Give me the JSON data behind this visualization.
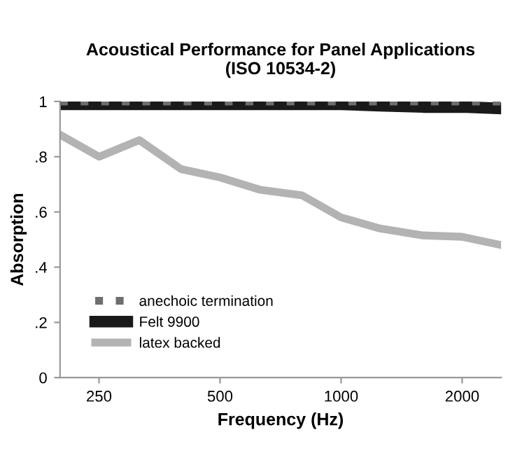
{
  "chart_data": {
    "type": "line",
    "title": "Acoustical Performance for Panel Applications\n(ISO 10534-2)",
    "xlabel": "Frequency (Hz)",
    "ylabel": "Absorption",
    "log": "x",
    "x": [
      200,
      250,
      315,
      400,
      500,
      630,
      800,
      1000,
      1250,
      1600,
      2000,
      2500
    ],
    "xlim": [
      200,
      2500
    ],
    "xticks": [
      250,
      500,
      1000,
      2000
    ],
    "ylim": [
      0,
      1
    ],
    "yticks": [
      0,
      {
        "value": 0.2,
        "label": ".2"
      },
      {
        "value": 0.4,
        "label": ".4"
      },
      {
        "value": 0.6,
        "label": ".6"
      },
      {
        "value": 0.8,
        "label": ".8"
      },
      1
    ],
    "grid": false,
    "legend": "bottom left",
    "marker": "none",
    "series": [
      {
        "name": "anechoic termination",
        "color": "#6e6e6e",
        "line_style": "dotted",
        "values": [
          1.0,
          1.0,
          1.0,
          1.0,
          1.0,
          1.0,
          1.0,
          1.0,
          1.0,
          1.0,
          1.0,
          1.0
        ]
      },
      {
        "name": "Felt 9900",
        "color": "#1a1a1a",
        "line_style": "solid",
        "values": [
          0.99,
          0.99,
          0.99,
          0.99,
          0.99,
          0.99,
          0.99,
          0.99,
          0.985,
          0.98,
          0.98,
          0.975
        ]
      },
      {
        "name": "latex backed",
        "color": "#b3b3b3",
        "line_style": "solid",
        "values": [
          0.88,
          0.8,
          0.86,
          0.755,
          0.725,
          0.68,
          0.66,
          0.58,
          0.54,
          0.515,
          0.51,
          0.48
        ]
      }
    ]
  }
}
